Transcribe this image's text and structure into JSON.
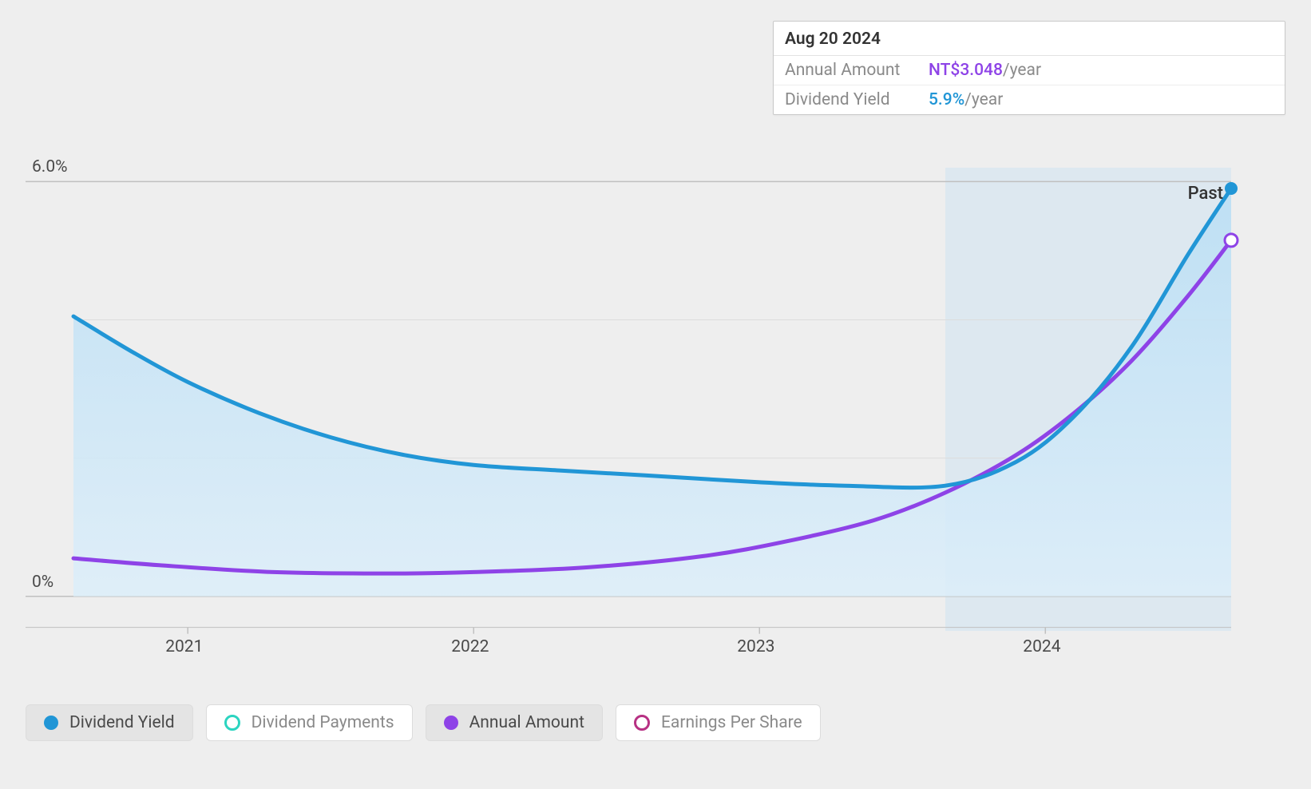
{
  "chart": {
    "type": "line",
    "background_color": "#eeeeee",
    "plot_background_color": "#eeeeee",
    "grid_color": "#dcdcdc",
    "axis_line_color": "#c0c0c0",
    "label_color": "#4a4a4a",
    "label_fontsize": 21,
    "xlim_years": [
      2020.6,
      2024.65
    ],
    "ylim": [
      -0.5,
      6.2
    ],
    "y_ticks": [
      {
        "value": 0,
        "label": "0%"
      },
      {
        "value": 6,
        "label": "6.0%"
      }
    ],
    "y_minor_gridlines": [
      2,
      4
    ],
    "x_ticks": [
      {
        "value": 2021,
        "label": "2021"
      },
      {
        "value": 2022,
        "label": "2022"
      },
      {
        "value": 2023,
        "label": "2023"
      },
      {
        "value": 2024,
        "label": "2024"
      }
    ],
    "shaded_region": {
      "start_year": 2023.65,
      "end_year": 2024.65,
      "fill": "#cfe4f3",
      "opacity": 0.55,
      "label": "Past",
      "label_color": "#333333"
    },
    "area_fill": {
      "series": "dividend_yield",
      "color_top": "#b9def4",
      "color_bottom": "#dceefa",
      "opacity": 0.85
    },
    "series": {
      "dividend_yield": {
        "label": "Dividend Yield",
        "color": "#2196d6",
        "line_width": 5,
        "marker_end": {
          "shape": "circle",
          "fill": "#2196d6",
          "r": 8
        },
        "points": [
          {
            "x": 2020.6,
            "y": 4.05
          },
          {
            "x": 2020.8,
            "y": 3.55
          },
          {
            "x": 2021.0,
            "y": 3.1
          },
          {
            "x": 2021.25,
            "y": 2.65
          },
          {
            "x": 2021.5,
            "y": 2.3
          },
          {
            "x": 2021.75,
            "y": 2.05
          },
          {
            "x": 2022.0,
            "y": 1.9
          },
          {
            "x": 2022.3,
            "y": 1.82
          },
          {
            "x": 2022.6,
            "y": 1.75
          },
          {
            "x": 2023.0,
            "y": 1.65
          },
          {
            "x": 2023.3,
            "y": 1.6
          },
          {
            "x": 2023.65,
            "y": 1.6
          },
          {
            "x": 2023.9,
            "y": 1.95
          },
          {
            "x": 2024.1,
            "y": 2.6
          },
          {
            "x": 2024.3,
            "y": 3.6
          },
          {
            "x": 2024.5,
            "y": 4.95
          },
          {
            "x": 2024.65,
            "y": 5.9
          }
        ]
      },
      "annual_amount": {
        "label": "Annual Amount",
        "color": "#8e43e7",
        "line_width": 5,
        "marker_end": {
          "shape": "circle",
          "fill": "#ffffff",
          "stroke": "#8e43e7",
          "r": 8
        },
        "points": [
          {
            "x": 2020.6,
            "y": 0.55
          },
          {
            "x": 2020.9,
            "y": 0.45
          },
          {
            "x": 2021.3,
            "y": 0.35
          },
          {
            "x": 2021.7,
            "y": 0.33
          },
          {
            "x": 2022.0,
            "y": 0.35
          },
          {
            "x": 2022.4,
            "y": 0.42
          },
          {
            "x": 2022.8,
            "y": 0.58
          },
          {
            "x": 2023.1,
            "y": 0.8
          },
          {
            "x": 2023.4,
            "y": 1.1
          },
          {
            "x": 2023.65,
            "y": 1.5
          },
          {
            "x": 2023.9,
            "y": 2.05
          },
          {
            "x": 2024.1,
            "y": 2.65
          },
          {
            "x": 2024.3,
            "y": 3.4
          },
          {
            "x": 2024.5,
            "y": 4.35
          },
          {
            "x": 2024.65,
            "y": 5.15
          }
        ]
      }
    }
  },
  "tooltip": {
    "date": "Aug 20 2024",
    "rows": [
      {
        "label": "Annual Amount",
        "value": "NT$3.048",
        "unit": "/year",
        "value_color": "#8e43e7"
      },
      {
        "label": "Dividend Yield",
        "value": "5.9%",
        "unit": "/year",
        "value_color": "#2196d6"
      }
    ]
  },
  "legend": {
    "items": [
      {
        "name": "dividend-yield",
        "label": "Dividend Yield",
        "color": "#2196d6",
        "hollow": false,
        "active": true
      },
      {
        "name": "dividend-payments",
        "label": "Dividend Payments",
        "color": "#2bd4c0",
        "hollow": true,
        "active": false
      },
      {
        "name": "annual-amount",
        "label": "Annual Amount",
        "color": "#8e43e7",
        "hollow": false,
        "active": true
      },
      {
        "name": "earnings-per-share",
        "label": "Earnings Per Share",
        "color": "#b73183",
        "hollow": true,
        "active": false
      }
    ]
  }
}
